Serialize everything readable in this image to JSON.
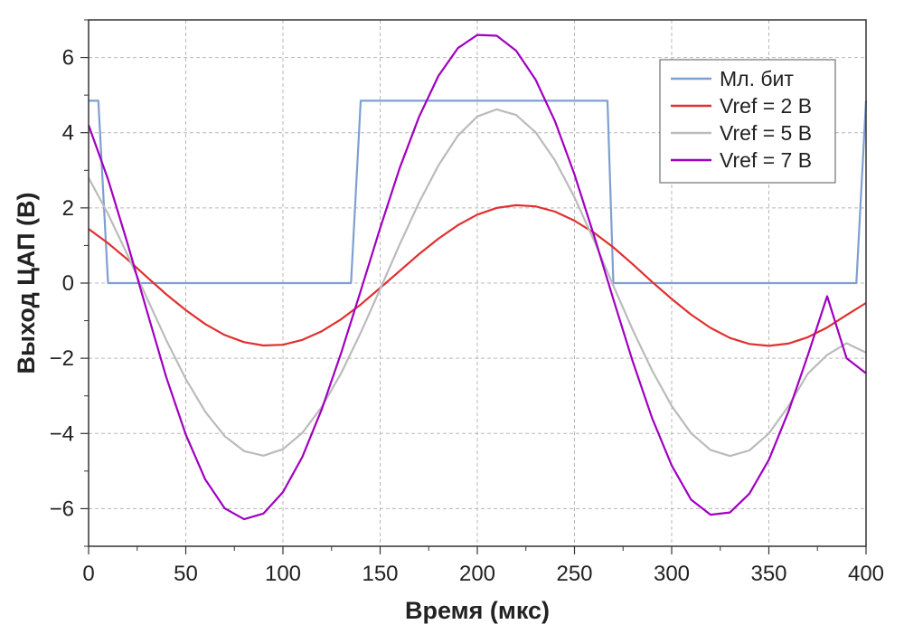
{
  "chart_data": {
    "type": "line",
    "title": "",
    "xlabel": "Время (мкс)",
    "ylabel": "Выход ЦАП (В)",
    "xlim": [
      0,
      400
    ],
    "ylim": [
      -7,
      7
    ],
    "xticks": [
      0,
      50,
      100,
      150,
      200,
      250,
      300,
      350,
      400
    ],
    "yticks": [
      -6,
      -4,
      -2,
      0,
      2,
      4,
      6
    ],
    "ytick_labels": [
      "−6",
      "−4",
      "−2",
      "0",
      "2",
      "4",
      "6"
    ],
    "grid": true,
    "legend_position": "top-right",
    "series": [
      {
        "name": "Мл. бит",
        "color": "#7f9fd0",
        "x": [
          0,
          5,
          10,
          135,
          140,
          267,
          270,
          395,
          400
        ],
        "y": [
          4.85,
          4.85,
          0,
          0,
          4.85,
          4.85,
          0,
          0,
          4.85
        ]
      },
      {
        "name": "Vref = 2 В",
        "color": "#e03030",
        "x": [
          0,
          10,
          20,
          30,
          40,
          50,
          60,
          70,
          80,
          90,
          100,
          110,
          120,
          130,
          140,
          150,
          160,
          170,
          180,
          190,
          200,
          210,
          220,
          230,
          240,
          250,
          260,
          270,
          280,
          290,
          300,
          310,
          320,
          330,
          340,
          350,
          360,
          370,
          380,
          390,
          400
        ],
        "y": [
          1.44,
          1.06,
          0.63,
          0.16,
          -0.3,
          -0.72,
          -1.09,
          -1.38,
          -1.57,
          -1.66,
          -1.64,
          -1.51,
          -1.28,
          -0.96,
          -0.57,
          -0.13,
          0.32,
          0.77,
          1.18,
          1.54,
          1.82,
          2.0,
          2.07,
          2.04,
          1.9,
          1.66,
          1.34,
          0.95,
          0.5,
          0.03,
          -0.42,
          -0.84,
          -1.19,
          -1.46,
          -1.62,
          -1.67,
          -1.61,
          -1.44,
          -1.18,
          -0.85,
          -0.53
        ]
      },
      {
        "name": "Vref = 5 В",
        "color": "#bbbbbb",
        "x": [
          0,
          10,
          20,
          30,
          40,
          50,
          60,
          70,
          80,
          90,
          100,
          110,
          120,
          130,
          140,
          150,
          160,
          170,
          180,
          190,
          200,
          210,
          220,
          230,
          240,
          250,
          260,
          270,
          280,
          290,
          300,
          310,
          320,
          330,
          340,
          350,
          360,
          370,
          380,
          390,
          400
        ],
        "y": [
          2.8,
          1.84,
          0.75,
          -0.4,
          -1.52,
          -2.55,
          -3.42,
          -4.07,
          -4.47,
          -4.59,
          -4.42,
          -3.98,
          -3.29,
          -2.39,
          -1.32,
          -0.16,
          1.02,
          2.14,
          3.13,
          3.92,
          4.43,
          4.62,
          4.47,
          4.01,
          3.26,
          2.28,
          1.14,
          -0.07,
          -1.25,
          -2.33,
          -3.27,
          -3.99,
          -4.44,
          -4.6,
          -4.45,
          -4.0,
          -3.28,
          -2.41,
          -1.91,
          -1.6,
          -1.85
        ]
      },
      {
        "name": "Vref = 7 В",
        "color": "#a000c0",
        "x": [
          0,
          10,
          20,
          30,
          40,
          50,
          60,
          70,
          80,
          90,
          100,
          110,
          120,
          130,
          140,
          150,
          160,
          170,
          180,
          190,
          200,
          210,
          220,
          230,
          240,
          250,
          260,
          270,
          280,
          290,
          300,
          310,
          320,
          330,
          340,
          350,
          360,
          370,
          380,
          390,
          400
        ],
        "y": [
          4.2,
          2.76,
          1.06,
          -0.74,
          -2.51,
          -4.03,
          -5.22,
          -5.99,
          -6.28,
          -6.13,
          -5.56,
          -4.62,
          -3.35,
          -1.85,
          -0.21,
          1.46,
          3.05,
          4.42,
          5.51,
          6.25,
          6.6,
          6.58,
          6.18,
          5.41,
          4.3,
          2.89,
          1.27,
          -0.43,
          -2.09,
          -3.6,
          -4.85,
          -5.76,
          -6.16,
          -6.1,
          -5.6,
          -4.7,
          -3.43,
          -1.93,
          -0.35,
          -2.0,
          -2.4
        ]
      }
    ]
  }
}
